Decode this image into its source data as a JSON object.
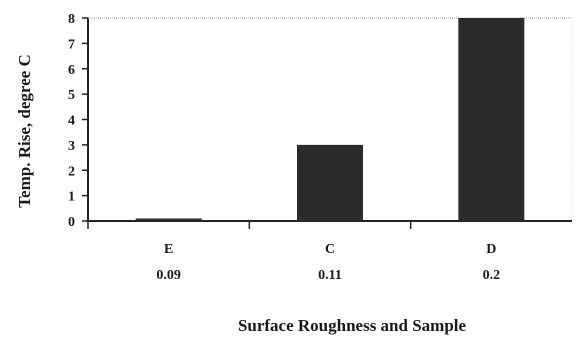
{
  "chart_data": {
    "type": "bar",
    "categories": [
      "E",
      "C",
      "D"
    ],
    "category_sublabels": [
      "0.09",
      "0.11",
      "0.2"
    ],
    "values": [
      0.1,
      3,
      8
    ],
    "xlabel": "Surface Roughness and Sample",
    "ylabel": "Temp. Rise, degree C",
    "ylim": [
      0,
      8
    ],
    "yticks": [
      "0",
      "1",
      "2",
      "3",
      "4",
      "5",
      "6",
      "7",
      "8"
    ],
    "grid": false,
    "colors": {
      "bar": "#2b2b2b",
      "axis": "#222222"
    }
  }
}
